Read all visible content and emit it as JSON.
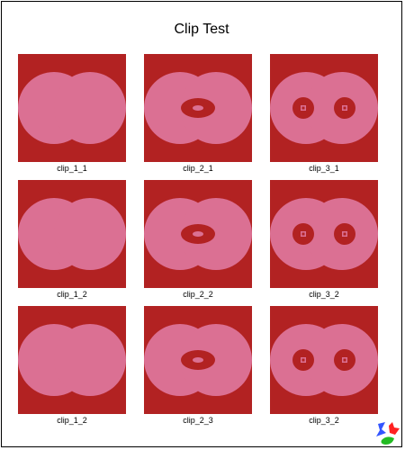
{
  "title": "Clip Test",
  "colors": {
    "background_red": "#b22222",
    "shape_pink": "#db7093"
  },
  "tiles": [
    {
      "label": "clip_1_1",
      "variant": 1
    },
    {
      "label": "clip_2_1",
      "variant": 2
    },
    {
      "label": "clip_3_1",
      "variant": 3
    },
    {
      "label": "clip_1_2",
      "variant": 1
    },
    {
      "label": "clip_2_2",
      "variant": 2
    },
    {
      "label": "clip_3_2",
      "variant": 3
    },
    {
      "label": "clip_1_2",
      "variant": 1
    },
    {
      "label": "clip_2_3",
      "variant": 2
    },
    {
      "label": "clip_3_2",
      "variant": 3
    }
  ],
  "logo": {
    "icon": "colored-blobs-logo",
    "colors": [
      "#3355ff",
      "#ff2222",
      "#22bb22"
    ]
  }
}
